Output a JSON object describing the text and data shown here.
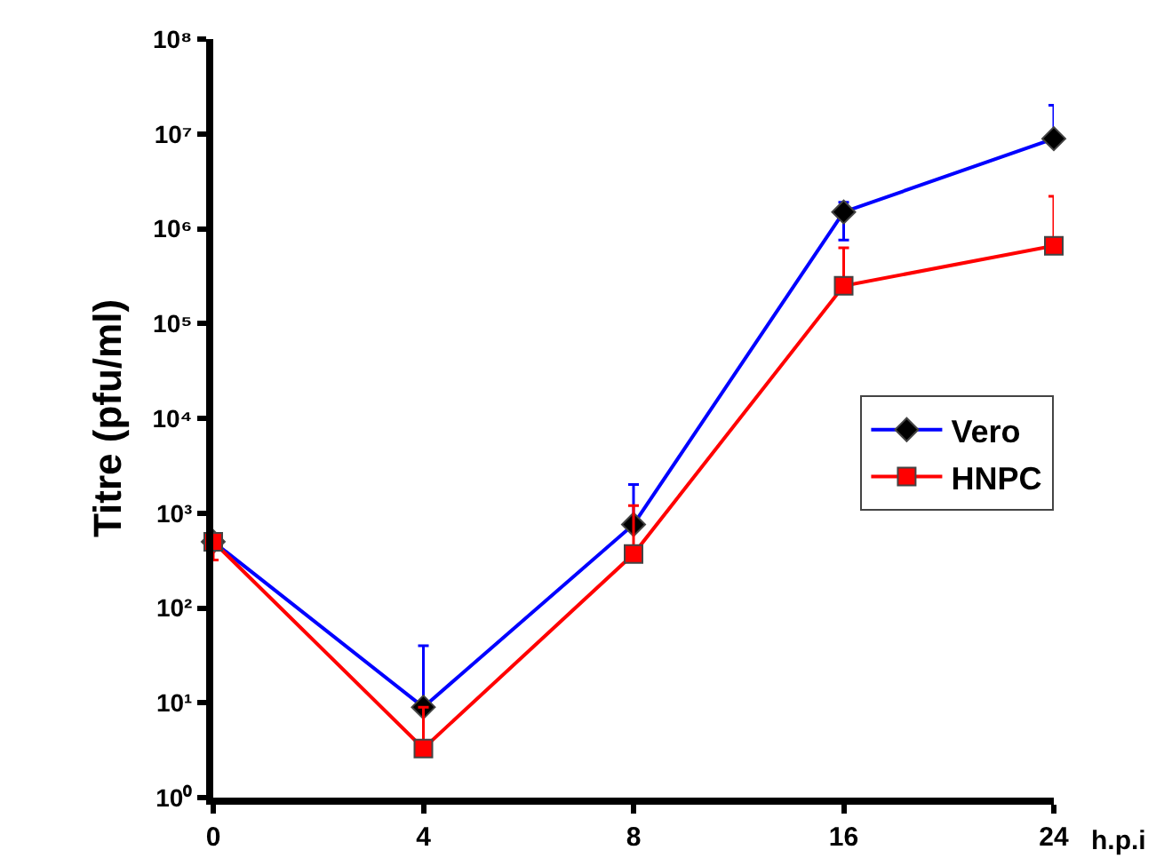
{
  "chart_data": {
    "type": "line",
    "ylabel": "Titre (pfu/ml)",
    "xlabel": "h.p.i",
    "categories": [
      "0",
      "4",
      "8",
      "16",
      "24"
    ],
    "series": [
      {
        "name": "Vero",
        "color": "#0000ff",
        "marker": "diamond",
        "values": [
          500,
          9,
          760,
          1500000,
          8900000
        ],
        "errors": [
          null,
          [
            9,
            40
          ],
          [
            760,
            2000
          ],
          [
            760000,
            1900000
          ],
          [
            8900000,
            20000000
          ]
        ]
      },
      {
        "name": "HNPC",
        "color": "#ff0000",
        "marker": "square",
        "values": [
          500,
          3.3,
          370,
          250000,
          660000
        ],
        "errors": [
          [
            320,
            500
          ],
          [
            3.3,
            9
          ],
          [
            370,
            1200
          ],
          [
            250000,
            630000
          ],
          [
            660000,
            2200000
          ]
        ]
      }
    ],
    "log": "y",
    "ylim": [
      1,
      100000000
    ],
    "yticks": [
      {
        "value": 1,
        "label": "10⁰"
      },
      {
        "value": 10,
        "label": "10¹"
      },
      {
        "value": 100,
        "label": "10²"
      },
      {
        "value": 1000,
        "label": "10³"
      },
      {
        "value": 10000,
        "label": "10⁴"
      },
      {
        "value": 100000,
        "label": "10⁵"
      },
      {
        "value": 1000000,
        "label": "10⁶"
      },
      {
        "value": 10000000,
        "label": "10⁷"
      },
      {
        "value": 100000000,
        "label": "10⁸"
      }
    ],
    "legend": "right",
    "line_style": "solid"
  }
}
